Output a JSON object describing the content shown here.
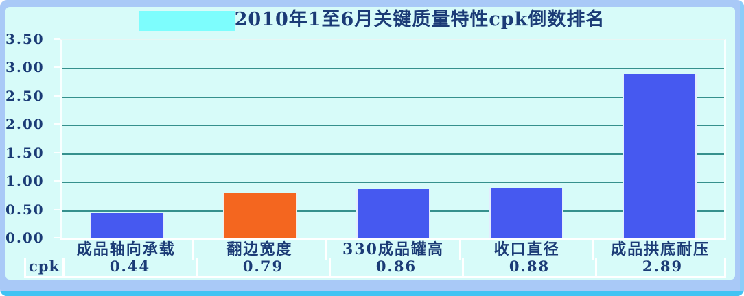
{
  "title": "2010年1至6月关键质量特性cpk倒数排名",
  "y_axis_labels": [
    "3.50",
    "3.00",
    "2.50",
    "2.00",
    "1.50",
    "1.00",
    "0.50",
    "0.00"
  ],
  "chart_data": {
    "type": "bar",
    "title": "2010年1至6月关键质量特性cpk倒数排名",
    "categories": [
      "成品轴向承载",
      "翻边宽度",
      "330成品罐高",
      "收口直径",
      "成品拱底耐压"
    ],
    "values": [
      0.44,
      0.79,
      0.86,
      0.88,
      2.89
    ],
    "value_labels": [
      "0.44",
      "0.79",
      "0.86",
      "0.88",
      "2.89"
    ],
    "row_label": "cpk",
    "xlabel": "",
    "ylabel": "",
    "ylim": [
      0,
      3.5
    ],
    "ytick_step": 0.5,
    "grid": true,
    "legend_position": "none",
    "highlight_index": 1
  },
  "colors": {
    "bar_default": "#4659f0",
    "bar_highlight": "#f4661f",
    "gridline": "#35908d",
    "text": "#1b3b76",
    "plot_background": "#d7fbf9",
    "frame": "#a9c9f7",
    "title_highlight_box": "#7dfdfd",
    "table_border": "#ffffff",
    "bottom_edge": "#41c3f3"
  }
}
